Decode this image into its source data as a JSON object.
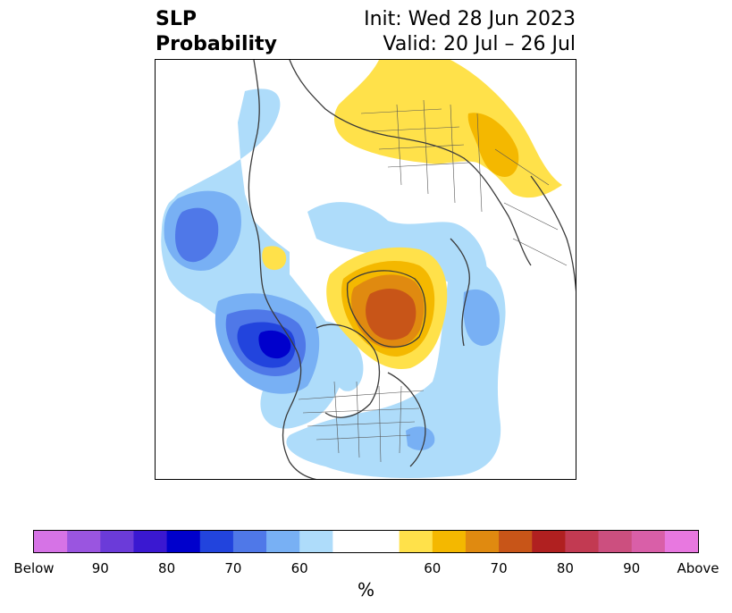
{
  "title": {
    "left_line1": "SLP",
    "left_line2": "Probability",
    "right_line1": "Init: Wed 28 Jun 2023",
    "right_line2": "Valid: 20 Jul – 26 Jul"
  },
  "colorbar": {
    "unit": "%",
    "colors": [
      "#d673e6",
      "#9a55e0",
      "#6b3bd9",
      "#3a18d1",
      "#0000cc",
      "#2244dd",
      "#4f78e8",
      "#78b0f4",
      "#aedcfa",
      "#ffffff",
      "#ffffff",
      "#ffe14a",
      "#f4b800",
      "#e08a10",
      "#c85518",
      "#b02020",
      "#c23a52",
      "#cc4f7f",
      "#d95fa8",
      "#e878e0"
    ],
    "tick_labels": [
      "Below",
      "90",
      "80",
      "70",
      "60",
      "60",
      "70",
      "80",
      "90",
      "Above"
    ]
  },
  "palette": {
    "blue_light": "#aedcfa",
    "blue_mid": "#78b0f4",
    "blue_60": "#4f78e8",
    "blue_70": "#2244dd",
    "blue_80": "#0000cc",
    "yellow": "#ffe14a",
    "gold": "#f4b800",
    "orange": "#e08a10",
    "brown": "#c85518"
  }
}
